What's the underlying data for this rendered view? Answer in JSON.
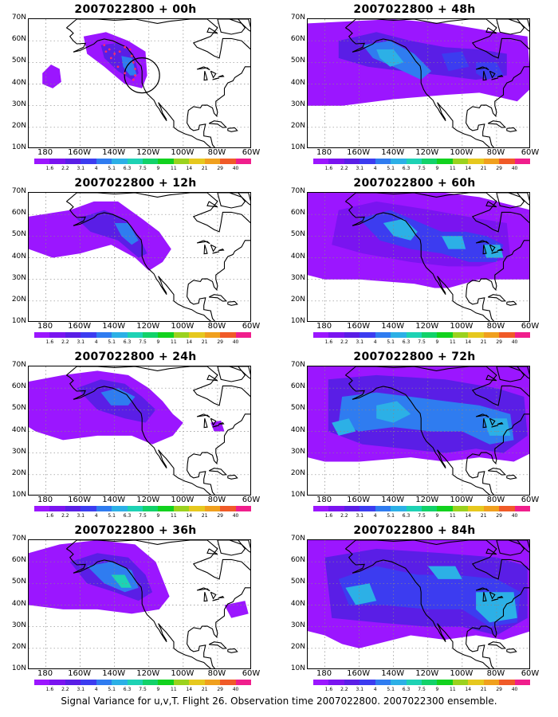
{
  "caption": "Signal Variance for u,v,T. Flight 26. Observation time 2007022800. 2007022300 ensemble.",
  "lat_labels": [
    "70N",
    "60N",
    "50N",
    "40N",
    "30N",
    "20N",
    "10N"
  ],
  "lon_labels": [
    "180",
    "160W",
    "140W",
    "120W",
    "100W",
    "80W",
    "60W"
  ],
  "colorbar": {
    "labels": [
      "1.6",
      "2.2",
      "3.1",
      "4",
      "5.1",
      "6.3",
      "7.5",
      "9",
      "11",
      "14",
      "21",
      "29",
      "40"
    ],
    "colors": [
      "#9b16ff",
      "#7a14f0",
      "#5a1ee6",
      "#3c3cf0",
      "#2f7cf0",
      "#2cb0e6",
      "#1ed2b4",
      "#12d26a",
      "#12d21e",
      "#9bd21e",
      "#e6c81e",
      "#f0a01e",
      "#f05a28",
      "#f01e8c"
    ]
  },
  "panels": [
    {
      "title": "2007022800 + 00h",
      "lead": "00h"
    },
    {
      "title": "2007022800 + 48h",
      "lead": "48h"
    },
    {
      "title": "2007022800 + 12h",
      "lead": "12h"
    },
    {
      "title": "2007022800 + 60h",
      "lead": "60h"
    },
    {
      "title": "2007022800 + 24h",
      "lead": "24h"
    },
    {
      "title": "2007022800 + 72h",
      "lead": "72h"
    },
    {
      "title": "2007022800 + 36h",
      "lead": "36h"
    },
    {
      "title": "2007022800 + 84h",
      "lead": "84h"
    }
  ]
}
